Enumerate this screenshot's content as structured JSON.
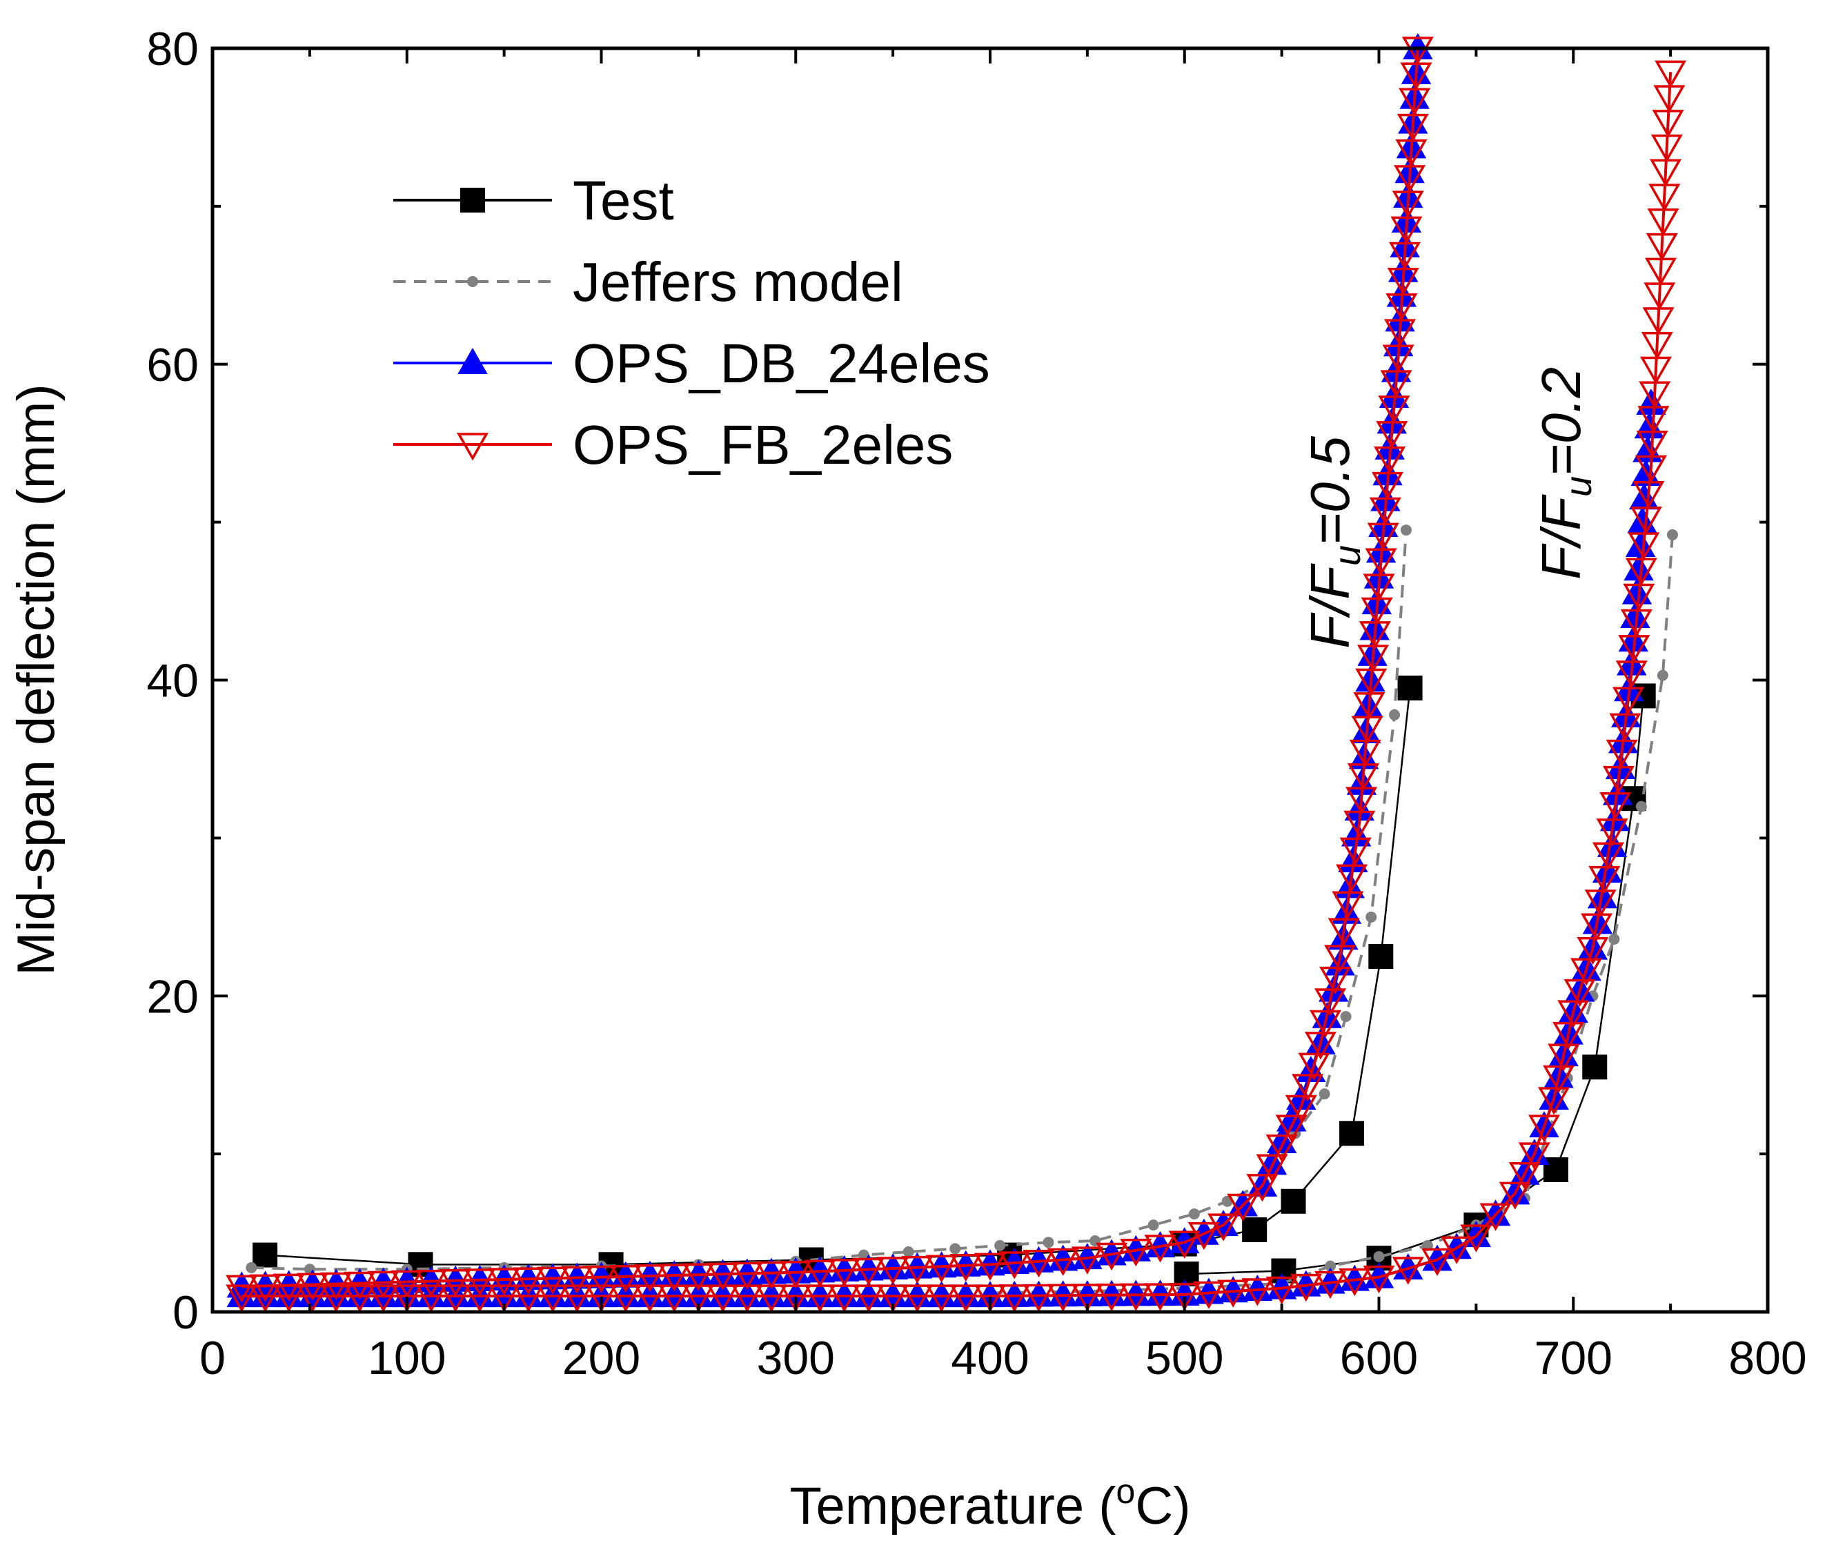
{
  "chart_data": {
    "type": "line",
    "xlabel": "Temperature (",
    "xlabel_sup": "o",
    "xlabel_end": "C)",
    "ylabel": "Mid-span deflection (mm)",
    "xlim": [
      0,
      800
    ],
    "ylim": [
      0,
      80
    ],
    "xticks": [
      "0",
      "100",
      "200",
      "300",
      "400",
      "500",
      "600",
      "700",
      "800"
    ],
    "yticks": [
      "0",
      "20",
      "40",
      "60",
      "80"
    ],
    "grid": false,
    "legend_position": "top-left",
    "annotations": [
      {
        "prefix": "F/F",
        "sub": "u",
        "suffix": "=0.5"
      },
      {
        "prefix": "F/F",
        "sub": "u",
        "suffix": "=0.2"
      }
    ],
    "series": [
      {
        "name": "Test",
        "color": "#000000",
        "marker": "square",
        "dash": false,
        "curves": [
          [
            [
              27,
              3.6
            ],
            [
              107,
              3.0
            ],
            [
              205,
              3.0
            ],
            [
              308,
              3.3
            ],
            [
              410,
              3.6
            ],
            [
              500,
              4.3
            ],
            [
              536,
              5.2
            ],
            [
              556,
              7.0
            ],
            [
              586,
              11.3
            ],
            [
              601,
              22.5
            ],
            [
              616,
              39.5
            ]
          ],
          [
            [
              501,
              2.4
            ],
            [
              551,
              2.6
            ],
            [
              600,
              3.4
            ],
            [
              650,
              5.5
            ],
            [
              691,
              9.0
            ],
            [
              711,
              15.5
            ],
            [
              731,
              32.5
            ],
            [
              736,
              39.0
            ]
          ]
        ]
      },
      {
        "name": "Jeffers model",
        "color": "#808080",
        "marker": "dot",
        "dash": true,
        "curves": [
          [
            [
              20,
              2.8
            ],
            [
              50,
              2.7
            ],
            [
              100,
              2.7
            ],
            [
              150,
              2.8
            ],
            [
              200,
              2.9
            ],
            [
              250,
              3.0
            ],
            [
              300,
              3.2
            ],
            [
              335,
              3.6
            ],
            [
              358,
              3.8
            ],
            [
              382,
              4.0
            ],
            [
              405,
              4.2
            ],
            [
              430,
              4.4
            ],
            [
              454,
              4.5
            ],
            [
              484,
              5.5
            ],
            [
              505,
              6.2
            ],
            [
              522,
              7.0
            ],
            [
              541,
              8.2
            ],
            [
              557,
              11.3
            ],
            [
              572,
              13.8
            ],
            [
              583,
              18.7
            ],
            [
              596,
              25.0
            ],
            [
              608,
              37.8
            ],
            [
              614,
              49.5
            ]
          ],
          [
            [
              400,
              1.2
            ],
            [
              450,
              1.3
            ],
            [
              500,
              1.5
            ],
            [
              550,
              1.8
            ],
            [
              575,
              2.9
            ],
            [
              600,
              3.5
            ],
            [
              625,
              4.2
            ],
            [
              650,
              5.5
            ],
            [
              675,
              7.2
            ],
            [
              697,
              14.8
            ],
            [
              710,
              20.0
            ],
            [
              721,
              23.6
            ],
            [
              735,
              32.0
            ],
            [
              746,
              40.3
            ],
            [
              751,
              49.2
            ]
          ]
        ]
      },
      {
        "name": "OPS_DB_24eles",
        "color": "#0000ff",
        "marker": "triangle-up",
        "dash": false,
        "curves": [
          [
            [
              15,
              1.6
            ],
            [
              100,
              1.9
            ],
            [
              200,
              2.2
            ],
            [
              300,
              2.5
            ],
            [
              400,
              3.0
            ],
            [
              450,
              3.4
            ],
            [
              500,
              4.4
            ],
            [
              520,
              5.5
            ],
            [
              540,
              8.0
            ],
            [
              560,
              13.5
            ],
            [
              570,
              17.0
            ],
            [
              580,
              22.0
            ],
            [
              590,
              31.8
            ],
            [
              600,
              46.5
            ],
            [
              610,
              61.2
            ],
            [
              620,
              80.0
            ]
          ],
          [
            [
              15,
              1.0
            ],
            [
              100,
              1.0
            ],
            [
              200,
              1.0
            ],
            [
              300,
              1.0
            ],
            [
              400,
              1.0
            ],
            [
              500,
              1.1
            ],
            [
              550,
              1.5
            ],
            [
              600,
              2.2
            ],
            [
              630,
              3.3
            ],
            [
              650,
              4.8
            ],
            [
              670,
              7.5
            ],
            [
              680,
              10.0
            ],
            [
              690,
              13.5
            ],
            [
              700,
              19.0
            ],
            [
              710,
              23.0
            ],
            [
              720,
              29.5
            ],
            [
              730,
              41.0
            ],
            [
              740,
              57.5
            ]
          ]
        ]
      },
      {
        "name": "OPS_FB_2eles",
        "color": "#e00000",
        "marker": "triangle-down",
        "dash": false,
        "curves": [
          [
            [
              15,
              1.6
            ],
            [
              100,
              1.9
            ],
            [
              200,
              2.2
            ],
            [
              300,
              2.5
            ],
            [
              400,
              3.0
            ],
            [
              450,
              3.4
            ],
            [
              500,
              4.4
            ],
            [
              520,
              5.5
            ],
            [
              540,
              8.0
            ],
            [
              560,
              13.0
            ],
            [
              570,
              17.0
            ],
            [
              580,
              22.5
            ],
            [
              590,
              31.0
            ],
            [
              600,
              46.0
            ],
            [
              610,
              60.5
            ],
            [
              620,
              80.0
            ]
          ],
          [
            [
              15,
              1.0
            ],
            [
              100,
              1.0
            ],
            [
              200,
              1.0
            ],
            [
              300,
              1.0
            ],
            [
              400,
              1.0
            ],
            [
              500,
              1.1
            ],
            [
              550,
              1.5
            ],
            [
              600,
              2.2
            ],
            [
              630,
              3.3
            ],
            [
              650,
              4.8
            ],
            [
              670,
              7.5
            ],
            [
              680,
              10.0
            ],
            [
              690,
              13.5
            ],
            [
              700,
              19.0
            ],
            [
              710,
              23.0
            ],
            [
              720,
              30.5
            ],
            [
              730,
              40.5
            ],
            [
              740,
              53.5
            ],
            [
              750,
              78.5
            ]
          ]
        ]
      }
    ]
  }
}
